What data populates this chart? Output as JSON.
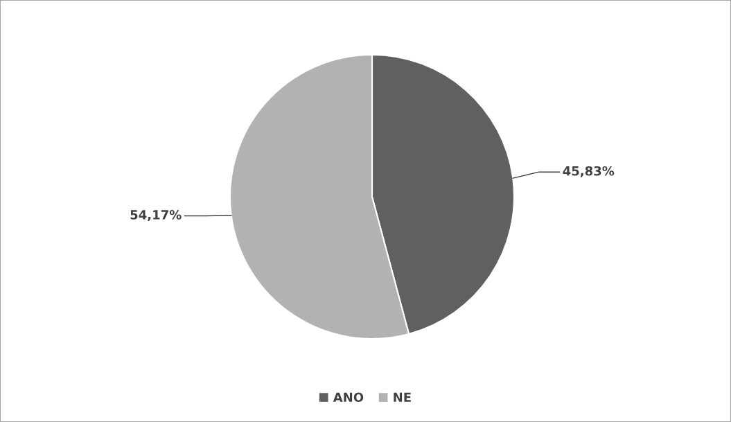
{
  "chart_data": {
    "type": "pie",
    "categories": [
      "ANO",
      "NE"
    ],
    "values": [
      45.83,
      54.17
    ],
    "colors": [
      "#606060",
      "#b2b2b2"
    ],
    "value_labels": [
      "45,83%",
      "54,17%"
    ],
    "legend": "bottom"
  }
}
